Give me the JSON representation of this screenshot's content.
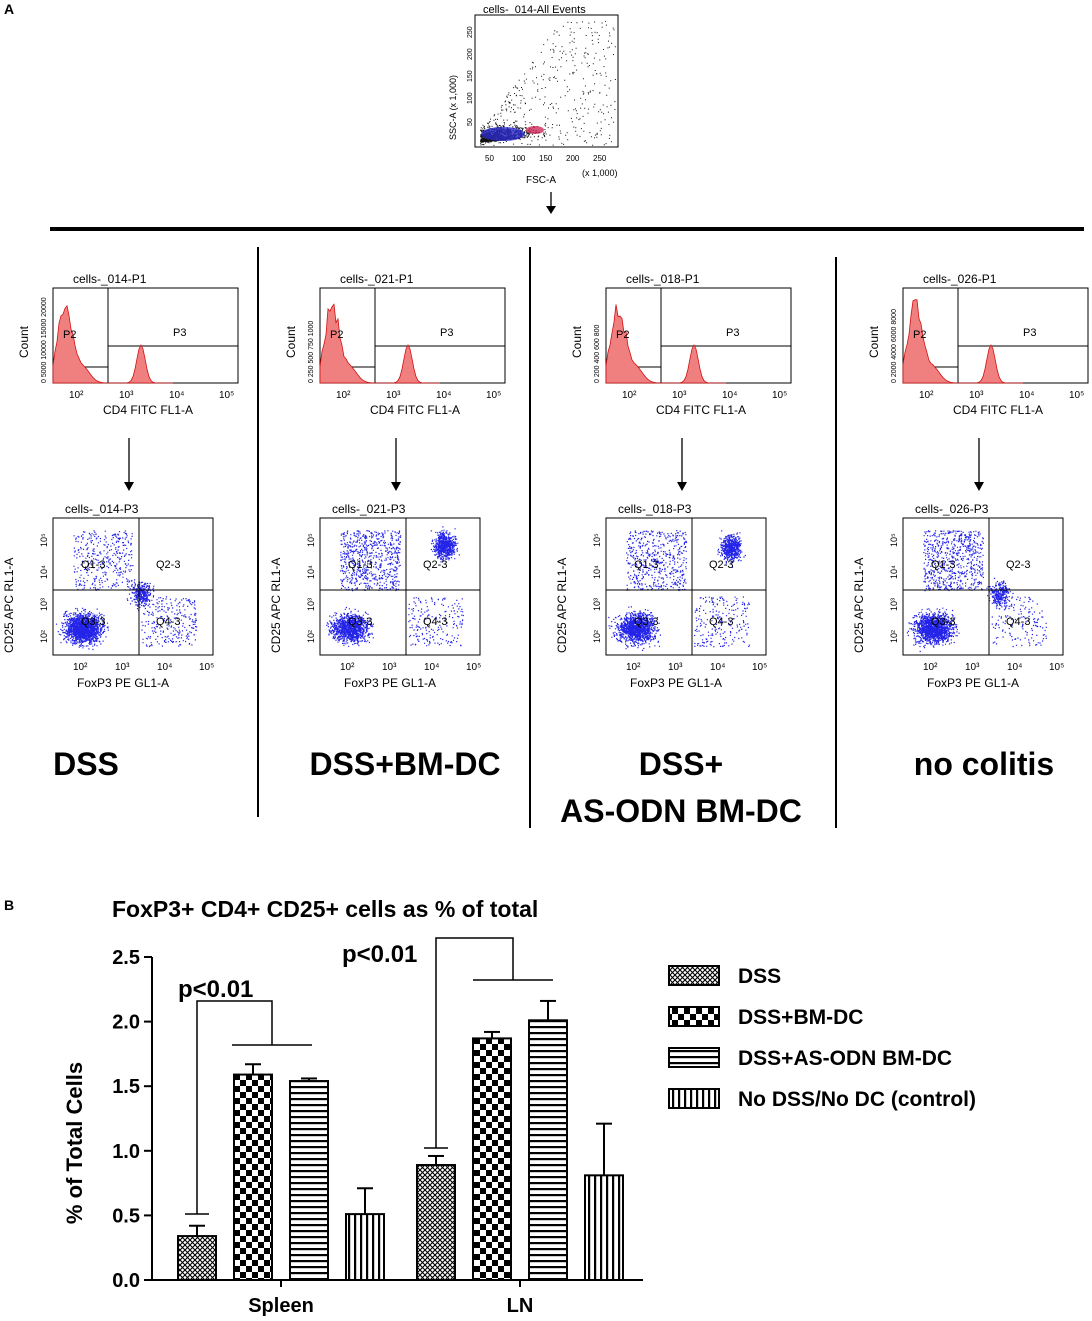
{
  "panel_a": {
    "label": "A",
    "top_plot": {
      "title": "cells-_014-All Events",
      "xlabel": "FSC-A",
      "ylabel": "SSC-A (x 1,000)",
      "x_ticks": [
        "50",
        "100",
        "150",
        "200",
        "250"
      ],
      "y_ticks": [
        "50",
        "100",
        "150",
        "200",
        "250"
      ],
      "x_unit": "(x 1,000)"
    },
    "groups": [
      {
        "name": "DSS",
        "hist_title": "cells-_014-P1",
        "scatter_title": "cells-_014-P3",
        "hist_y_ticks": "0 5000 10000 15000 20000"
      },
      {
        "name": "DSS+BM-DC",
        "hist_title": "cells-_021-P1",
        "scatter_title": "cells-_021-P3",
        "hist_y_ticks": "0 250 500 750 1000"
      },
      {
        "name": "DSS+",
        "name_line2": "AS-ODN BM-DC",
        "hist_title": "cells-_018-P1",
        "scatter_title": "cells-_018-P3",
        "hist_y_ticks": "0 200 400 600 800"
      },
      {
        "name": "no colitis",
        "hist_title": "cells-_026-P1",
        "scatter_title": "cells-_026-P3",
        "hist_y_ticks": "0 2000 4000 6000 8000"
      }
    ],
    "hist": {
      "ylabel": "Count",
      "xlabel": "CD4 FITC FL1-A",
      "gate_left": "P2",
      "gate_right": "P3",
      "x_ticks": [
        "10²",
        "10³",
        "10⁴",
        "10⁵"
      ]
    },
    "scatter": {
      "ylabel": "CD25 APC RL1-A",
      "xlabel": "FoxP3 PE GL1-A",
      "quadrants": [
        "Q1-3",
        "Q2-3",
        "Q3-3",
        "Q4-3"
      ],
      "x_ticks": [
        "10²",
        "10³",
        "10⁴",
        "10⁵"
      ],
      "y_ticks": [
        "10²",
        "10³",
        "10⁴",
        "10⁵"
      ]
    }
  },
  "chart_data": {
    "type": "bar",
    "panel_label": "B",
    "title": "FoxP3+ CD4+ CD25+ cells as % of total",
    "ylabel": "% of Total Cells",
    "xlabel": "",
    "ylim": [
      0,
      2.5
    ],
    "y_ticks": [
      "0.0",
      "0.5",
      "1.0",
      "1.5",
      "2.0",
      "2.5"
    ],
    "categories": [
      "Spleen",
      "LN"
    ],
    "series": [
      {
        "name": "DSS",
        "values": [
          0.34,
          0.89
        ],
        "errors": [
          0.08,
          0.07
        ]
      },
      {
        "name": "DSS+BM-DC",
        "values": [
          1.59,
          1.87
        ],
        "errors": [
          0.08,
          0.05
        ]
      },
      {
        "name": "DSS+AS-ODN BM-DC",
        "values": [
          1.54,
          2.01
        ],
        "errors": [
          0.02,
          0.15
        ]
      },
      {
        "name": "No DSS/No DC (control)",
        "values": [
          0.51,
          0.81
        ],
        "errors": [
          0.2,
          0.4
        ]
      }
    ],
    "annotations": [
      {
        "text": "p<0.01",
        "category": "Spleen"
      },
      {
        "text": "p<0.01",
        "category": "LN"
      }
    ]
  }
}
